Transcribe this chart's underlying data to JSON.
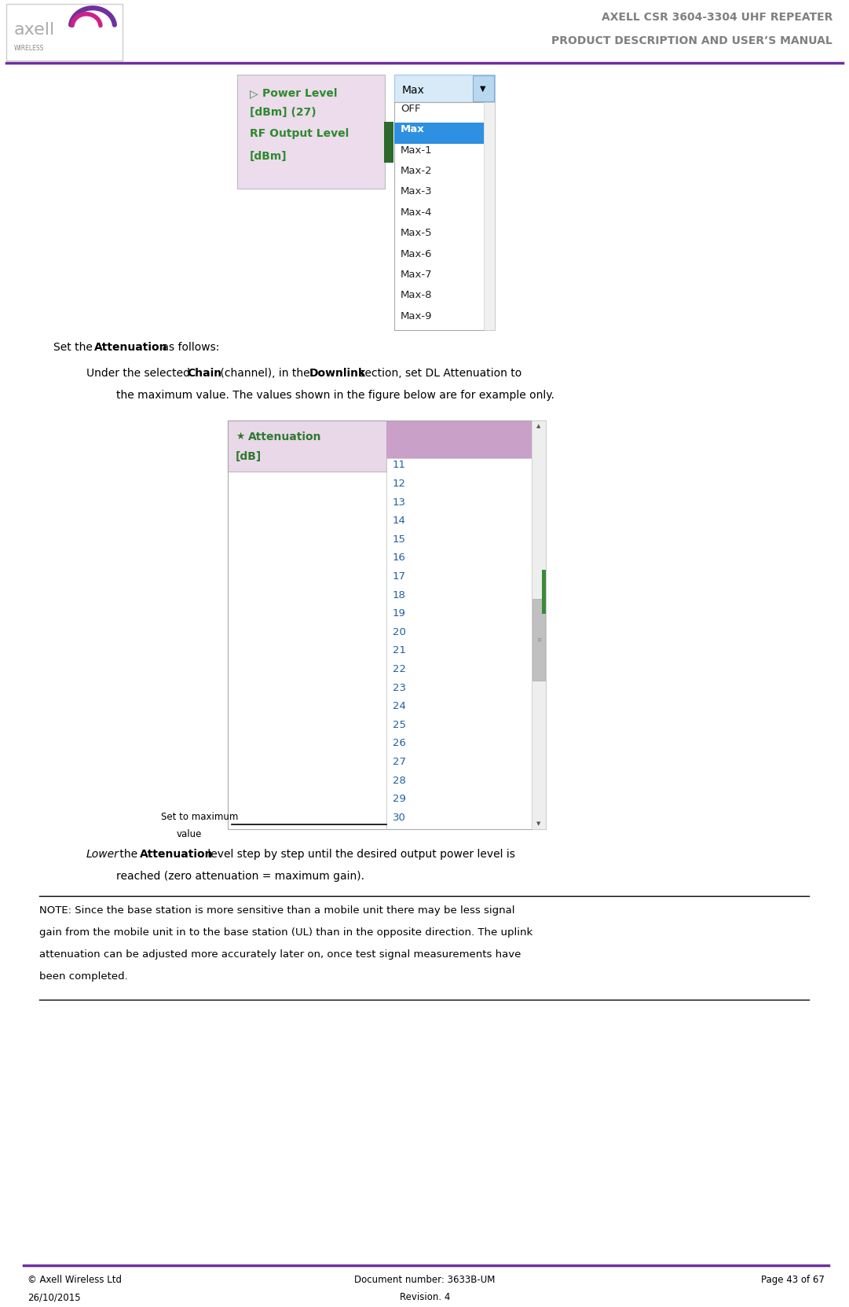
{
  "page_width": 10.81,
  "page_height": 16.63,
  "bg_color": "#ffffff",
  "header_line_color": "#7030a0",
  "footer_line_color": "#7030a0",
  "header_title1": "AXELL CSR 3604-3304 UHF REPEATER",
  "header_title2": "PRODUCT DESCRIPTION AND USER’S MANUAL",
  "header_title_color": "#808080",
  "footer_left1": "© Axell Wireless Ltd",
  "footer_left2": "26/10/2015",
  "footer_center1": "Document number: 3633B-UM",
  "footer_center2": "Revision. 4",
  "footer_right1": "Page 43 of 67",
  "footer_text_color": "#000000",
  "body_text_color": "#000000",
  "power_level_box_bg": "#ecdcec",
  "power_level_label_color": "#2d8a2d",
  "dropdown_selected_bg": "#2e90e0",
  "dropdown_items": [
    "OFF",
    "Max",
    "Max-1",
    "Max-2",
    "Max-3",
    "Max-4",
    "Max-5",
    "Max-6",
    "Max-7",
    "Max-8",
    "Max-9"
  ],
  "attenuation_box_bg": "#e8d8e8",
  "attenuation_top_bg": "#c8a0c8",
  "attenuation_label_color": "#2d7a2d",
  "attenuation_num_color": "#2060a0",
  "attenuation_items": [
    "11",
    "12",
    "13",
    "14",
    "15",
    "16",
    "17",
    "18",
    "19",
    "20",
    "21",
    "22",
    "23",
    "24",
    "25",
    "26",
    "27",
    "28",
    "29",
    "30"
  ],
  "scrollbar_bg": "#e8e8e8",
  "scrollbar_thumb": "#a0a0a0",
  "green_bar_color": "#2d6a2d",
  "note_line_color": "#000000"
}
